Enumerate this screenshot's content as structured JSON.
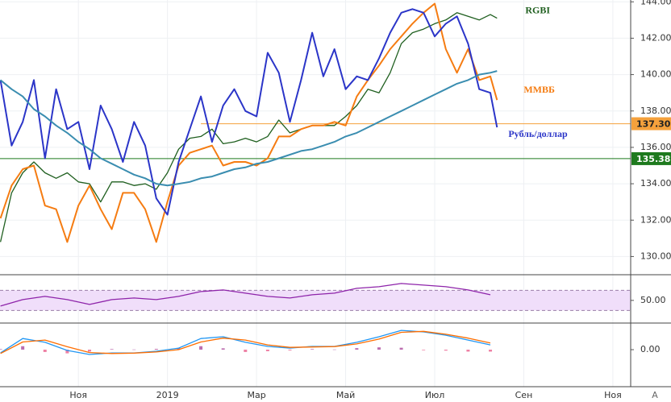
{
  "chart_data": [
    {
      "type": "line",
      "grid": true,
      "xlim": [
        9.24,
        23.4
      ],
      "xticks": [
        {
          "value": 11,
          "label": "Ноя"
        },
        {
          "value": 13,
          "label": "2019"
        },
        {
          "value": 15,
          "label": "Мар"
        },
        {
          "value": 17,
          "label": "Май"
        },
        {
          "value": 19,
          "label": "Июл"
        },
        {
          "value": 21,
          "label": "Сен"
        },
        {
          "value": 23,
          "label": "Ноя"
        }
      ],
      "ylim": [
        129,
        144.1
      ],
      "yticks": [
        {
          "value": 130,
          "label": "130.00"
        },
        {
          "value": 132,
          "label": "132.00"
        },
        {
          "value": 134,
          "label": "134.00"
        },
        {
          "value": 136,
          "label": "136.00"
        },
        {
          "value": 138,
          "label": "138.00"
        },
        {
          "value": 140,
          "label": "140.00"
        },
        {
          "value": 142,
          "label": "142.00"
        },
        {
          "value": 144,
          "label": "144.00"
        }
      ],
      "x": [
        9.25,
        9.5,
        9.75,
        10,
        10.25,
        10.5,
        10.75,
        11,
        11.25,
        11.5,
        11.75,
        12,
        12.25,
        12.5,
        12.75,
        13,
        13.25,
        13.5,
        13.75,
        14,
        14.25,
        14.5,
        14.75,
        15,
        15.25,
        15.5,
        15.75,
        16,
        16.25,
        16.5,
        16.75,
        17,
        17.25,
        17.5,
        17.75,
        18,
        18.25,
        18.5,
        18.75,
        19,
        19.25,
        19.5,
        19.75,
        20,
        20.25,
        20.4
      ],
      "series": [
        {
          "name": "RGBI",
          "color": "#1f5f1f",
          "values": [
            130.8,
            133.5,
            134.6,
            135.2,
            134.6,
            134.3,
            134.6,
            134.1,
            134.0,
            133.0,
            134.1,
            134.1,
            133.9,
            134.0,
            133.7,
            134.6,
            135.9,
            136.5,
            136.6,
            137.0,
            136.2,
            136.3,
            136.5,
            136.3,
            136.6,
            137.5,
            136.8,
            137.0,
            137.2,
            137.2,
            137.2,
            137.7,
            138.3,
            139.2,
            139.0,
            140.1,
            141.7,
            142.3,
            142.5,
            142.8,
            143.0,
            143.4,
            143.2,
            143.0,
            143.3,
            143.1
          ]
        },
        {
          "name": "ММВБ",
          "color": "#f57c12",
          "values": [
            132.1,
            133.9,
            134.8,
            135.0,
            132.8,
            132.6,
            130.8,
            132.8,
            133.9,
            132.6,
            131.5,
            133.5,
            133.5,
            132.6,
            130.8,
            133.0,
            135.0,
            135.7,
            135.9,
            136.1,
            135.0,
            135.2,
            135.2,
            135.0,
            135.4,
            136.6,
            136.6,
            137.0,
            137.2,
            137.2,
            137.4,
            137.2,
            138.8,
            139.7,
            140.5,
            141.4,
            142.1,
            142.8,
            143.4,
            143.9,
            141.4,
            140.1,
            141.4,
            139.7,
            139.9,
            138.6
          ]
        },
        {
          "name": "Рубль/доллар",
          "color": "#2b35c8",
          "values": [
            139.7,
            136.1,
            137.4,
            139.7,
            135.4,
            139.2,
            137.0,
            137.4,
            134.8,
            138.3,
            137.0,
            135.2,
            137.4,
            136.1,
            133.2,
            132.3,
            135.2,
            137.0,
            138.8,
            136.3,
            138.3,
            139.2,
            138.0,
            137.7,
            141.2,
            140.1,
            137.4,
            139.7,
            142.3,
            139.9,
            141.4,
            139.2,
            139.9,
            139.7,
            140.9,
            142.3,
            143.4,
            143.6,
            143.4,
            142.1,
            142.8,
            143.2,
            141.7,
            139.2,
            139.0,
            137.1
          ]
        },
        {
          "color": "#3a8db0",
          "values": [
            139.7,
            139.2,
            138.8,
            138.1,
            137.7,
            137.2,
            136.8,
            136.3,
            135.9,
            135.4,
            135.1,
            134.8,
            134.5,
            134.3,
            134.0,
            133.9,
            134.0,
            134.1,
            134.3,
            134.4,
            134.6,
            134.8,
            134.9,
            135.1,
            135.2,
            135.4,
            135.6,
            135.8,
            135.9,
            136.1,
            136.3,
            136.6,
            136.8,
            137.1,
            137.4,
            137.7,
            138.0,
            138.3,
            138.6,
            138.9,
            139.2,
            139.5,
            139.7,
            140.0,
            140.1,
            140.2
          ]
        }
      ],
      "levels": [
        {
          "value": 137.3,
          "label": "137.30",
          "color": "#f5a13c"
        },
        {
          "value": 135.38,
          "label": "135.38",
          "color": "#1e7a1e"
        }
      ]
    },
    {
      "type": "line",
      "ylim": [
        5,
        101
      ],
      "yticks": [
        {
          "value": 50,
          "label": "50.00"
        }
      ],
      "band": [
        30,
        70
      ],
      "x": [
        9.25,
        9.75,
        10.25,
        10.75,
        11.25,
        11.75,
        12.25,
        12.75,
        13.25,
        13.75,
        14.25,
        14.75,
        15.25,
        15.75,
        16.25,
        16.75,
        17.25,
        17.75,
        18.25,
        18.75,
        19.25,
        19.75,
        20.25
      ],
      "series": [
        {
          "color": "#8e24aa",
          "values": [
            38.8,
            51.6,
            58,
            51.6,
            42,
            51.6,
            54.8,
            51.6,
            58,
            67.6,
            70.8,
            64.4,
            58,
            54.8,
            61.2,
            64.4,
            74,
            77.2,
            83.6,
            80.4,
            77.2,
            70.8,
            61.2
          ]
        }
      ]
    },
    {
      "type": "line",
      "ylim": [
        -1.92,
        1.38
      ],
      "yticks": [
        {
          "value": 0,
          "label": "0.00"
        }
      ],
      "x": [
        9.25,
        9.75,
        10.25,
        10.75,
        11.25,
        11.75,
        12.25,
        12.75,
        13.25,
        13.75,
        14.25,
        14.75,
        15.25,
        15.75,
        16.25,
        16.75,
        17.25,
        17.75,
        18.25,
        18.75,
        19.25,
        19.75,
        20.25
      ],
      "series": [
        {
          "style": "bar",
          "color": "#a0308f",
          "values": [
            0.03,
            0.18,
            -0.12,
            -0.19,
            -0.1,
            0.03,
            0.01,
            0.04,
            0.08,
            0.18,
            0.07,
            -0.12,
            -0.08,
            -0.04,
            0.03,
            0.01,
            0.08,
            0.12,
            0.1,
            -0.03,
            -0.05,
            -0.1,
            -0.1
          ]
        },
        {
          "color": "#2196f3",
          "values": [
            -0.17,
            0.58,
            0.38,
            -0.04,
            -0.25,
            -0.17,
            -0.17,
            -0.08,
            0.08,
            0.58,
            0.67,
            0.38,
            0.17,
            0.08,
            0.17,
            0.17,
            0.38,
            0.67,
            1.0,
            0.92,
            0.75,
            0.5,
            0.25
          ]
        },
        {
          "color": "#ff6d00",
          "values": [
            -0.2,
            0.4,
            0.5,
            0.15,
            -0.15,
            -0.2,
            -0.18,
            -0.12,
            0.0,
            0.4,
            0.6,
            0.5,
            0.25,
            0.12,
            0.14,
            0.16,
            0.3,
            0.55,
            0.9,
            0.95,
            0.8,
            0.6,
            0.35
          ]
        }
      ]
    }
  ],
  "ui": {
    "autoscale": "A"
  }
}
